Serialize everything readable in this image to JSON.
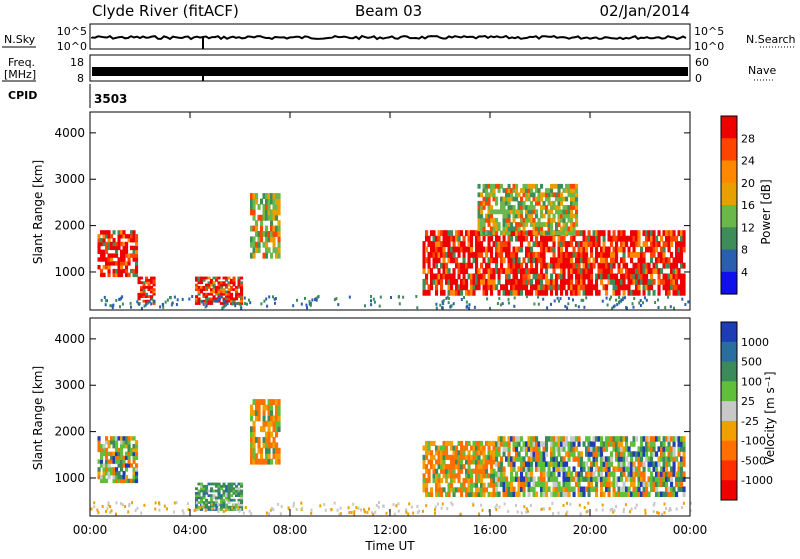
{
  "header": {
    "station": "Clyde River (fitACF)",
    "beam": "Beam 03",
    "date": "02/Jan/2014"
  },
  "strips": {
    "nsky_label": "N.Sky",
    "nsky_ticks": [
      "10^5",
      "10^0"
    ],
    "nsearch_label": "N.Search",
    "nsearch_ticks": [
      "10^5",
      "10^0"
    ],
    "freq_label": "Freq.",
    "freq_unit": "[MHz]",
    "freq_ticks": [
      "18",
      "8"
    ],
    "nave_label": "Nave",
    "nave_ticks": [
      "60",
      "0"
    ],
    "cpid_label": "CPID",
    "cpid_value": "3503"
  },
  "chart_data": [
    {
      "type": "heatmap",
      "panel": "power",
      "ylabel": "Slant Range [km]",
      "yticks": [
        "1000",
        "2000",
        "3000",
        "4000"
      ],
      "ylim": [
        180,
        4450
      ],
      "xlim": [
        0,
        24
      ],
      "colorbar": {
        "label": "Power [dB]",
        "ticks": [
          "28",
          "24",
          "20",
          "16",
          "12",
          "8",
          "4"
        ],
        "colors": [
          "#ee0000",
          "#ff4400",
          "#ff8800",
          "#e8a000",
          "#6ab84a",
          "#3d8c5a",
          "#2a5fb0",
          "#1010ee"
        ]
      },
      "echo_regions": [
        {
          "t0": 0.3,
          "t1": 1.9,
          "r0": 900,
          "r1": 1900,
          "level": "high"
        },
        {
          "t0": 1.9,
          "t1": 2.6,
          "r0": 300,
          "r1": 900,
          "level": "high"
        },
        {
          "t0": 4.2,
          "t1": 6.1,
          "r0": 300,
          "r1": 900,
          "level": "high"
        },
        {
          "t0": 6.4,
          "t1": 7.6,
          "r0": 1300,
          "r1": 2700,
          "level": "mid"
        },
        {
          "t0": 13.3,
          "t1": 23.8,
          "r0": 500,
          "r1": 1900,
          "level": "high"
        },
        {
          "t0": 15.5,
          "t1": 19.5,
          "r0": 1800,
          "r1": 2900,
          "level": "mid"
        }
      ]
    },
    {
      "type": "heatmap",
      "panel": "velocity",
      "ylabel": "Slant Range [km]",
      "yticks": [
        "1000",
        "2000",
        "3000",
        "4000"
      ],
      "ylim": [
        180,
        4450
      ],
      "xlim": [
        0,
        24
      ],
      "xticks": [
        "00:00",
        "04:00",
        "08:00",
        "12:00",
        "16:00",
        "20:00",
        "00:00"
      ],
      "xlabel": "Time UT",
      "colorbar": {
        "label": "Velocity [m s⁻¹]",
        "ticks": [
          "1000",
          "500",
          "100",
          "25",
          "-25",
          "-100",
          "-500",
          "-1000"
        ],
        "colors": [
          "#1e3cb4",
          "#2a6ea0",
          "#3a8a5a",
          "#5fbf3a",
          "#c8c8c8",
          "#f0a000",
          "#ff7000",
          "#ff3000",
          "#ee0000"
        ]
      },
      "echo_regions": [
        {
          "t0": 0.3,
          "t1": 1.9,
          "r0": 900,
          "r1": 1900,
          "level": "mixed"
        },
        {
          "t0": 4.2,
          "t1": 6.1,
          "r0": 300,
          "r1": 900,
          "level": "green"
        },
        {
          "t0": 6.4,
          "t1": 7.6,
          "r0": 1300,
          "r1": 2700,
          "level": "orange"
        },
        {
          "t0": 13.3,
          "t1": 16.2,
          "r0": 600,
          "r1": 1800,
          "level": "orange"
        },
        {
          "t0": 16.2,
          "t1": 23.8,
          "r0": 600,
          "r1": 1900,
          "level": "mixed"
        }
      ]
    }
  ]
}
